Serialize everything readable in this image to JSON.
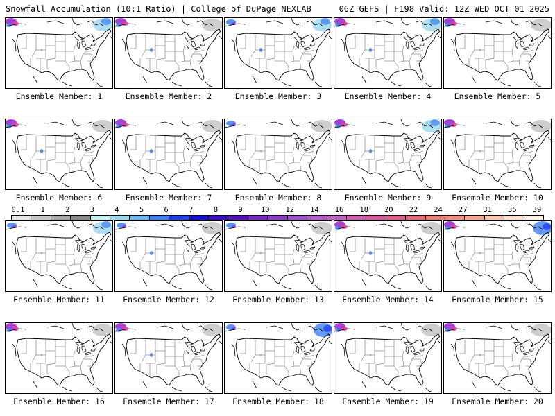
{
  "header": {
    "title_left": "Snowfall Accumulation (10:1 Ratio) | College of DuPage NEXLAB",
    "title_right": "06Z GEFS | F198 Valid: 12Z WED OCT 01 2025"
  },
  "panels": [
    {
      "label": "Ensemble Member: 1",
      "snow": {
        "pnw": "heavy",
        "ne": "light-blue",
        "rockies": "trace"
      }
    },
    {
      "label": "Ensemble Member: 2",
      "snow": {
        "pnw": "heavy",
        "ne": "light-gray",
        "rockies": "light"
      }
    },
    {
      "label": "Ensemble Member: 3",
      "snow": {
        "pnw": "moderate",
        "ne": "light-blue",
        "rockies": "light"
      }
    },
    {
      "label": "Ensemble Member: 4",
      "snow": {
        "pnw": "heavy",
        "ne": "light-blue",
        "rockies": "light"
      }
    },
    {
      "label": "Ensemble Member: 5",
      "snow": {
        "pnw": "heavy",
        "ne": "light-gray",
        "rockies": "trace"
      }
    },
    {
      "label": "Ensemble Member: 6",
      "snow": {
        "pnw": "heavy",
        "ne": "light-gray",
        "rockies": "light"
      }
    },
    {
      "label": "Ensemble Member: 7",
      "snow": {
        "pnw": "heavy",
        "ne": "light-gray",
        "rockies": "light"
      }
    },
    {
      "label": "Ensemble Member: 8",
      "snow": {
        "pnw": "moderate",
        "ne": "light-gray",
        "rockies": "trace"
      }
    },
    {
      "label": "Ensemble Member: 9",
      "snow": {
        "pnw": "heavy",
        "ne": "light-blue",
        "rockies": "light"
      }
    },
    {
      "label": "Ensemble Member: 10",
      "snow": {
        "pnw": "heavy",
        "ne": "light-gray",
        "rockies": "trace"
      }
    },
    {
      "label": "Ensemble Member: 11",
      "snow": {
        "pnw": "moderate",
        "ne": "light-blue",
        "rockies": "trace"
      }
    },
    {
      "label": "Ensemble Member: 12",
      "snow": {
        "pnw": "moderate",
        "ne": "light-gray",
        "rockies": "light"
      }
    },
    {
      "label": "Ensemble Member: 13",
      "snow": {
        "pnw": "moderate",
        "ne": "light-gray",
        "rockies": "trace"
      }
    },
    {
      "label": "Ensemble Member: 14",
      "snow": {
        "pnw": "heavy",
        "ne": "light-gray",
        "rockies": "light"
      }
    },
    {
      "label": "Ensemble Member: 15",
      "snow": {
        "pnw": "heavy",
        "ne": "moderate-blue",
        "rockies": "trace"
      }
    },
    {
      "label": "Ensemble Member: 16",
      "snow": {
        "pnw": "heavy",
        "ne": "light-gray",
        "rockies": "trace"
      }
    },
    {
      "label": "Ensemble Member: 17",
      "snow": {
        "pnw": "heavy",
        "ne": "light-gray",
        "rockies": "light"
      }
    },
    {
      "label": "Ensemble Member: 18",
      "snow": {
        "pnw": "moderate",
        "ne": "moderate-blue",
        "rockies": "trace"
      }
    },
    {
      "label": "Ensemble Member: 19",
      "snow": {
        "pnw": "heavy",
        "ne": "light-gray",
        "rockies": "trace"
      }
    },
    {
      "label": "Ensemble Member: 20",
      "snow": {
        "pnw": "heavy",
        "ne": "light-gray",
        "rockies": "trace"
      }
    }
  ],
  "colorbar": {
    "labels": [
      "0.1",
      "1",
      "2",
      "3",
      "4",
      "5",
      "6",
      "7",
      "8",
      "9",
      "10",
      "12",
      "14",
      "16",
      "18",
      "20",
      "22",
      "24",
      "27",
      "31",
      "35",
      "39"
    ],
    "colors": [
      "#e6e6e6",
      "#c8c8c8",
      "#a6a6a6",
      "#868686",
      "#c2f0f0",
      "#9ad8ee",
      "#6cb4ec",
      "#3c7ff0",
      "#1f3ff0",
      "#1010d8",
      "#3a0ac8",
      "#5a10c0",
      "#7a2ac2",
      "#8c3ec8",
      "#a050cc",
      "#b45ac8",
      "#c060c0",
      "#cc5aae",
      "#d65898",
      "#de5c86",
      "#e46878",
      "#ea7a74",
      "#f08e80",
      "#f4a894",
      "#f8c4b0",
      "#fbe0d0",
      "#fdf0e6"
    ]
  },
  "colors": {
    "background": "#ffffff",
    "map_lines": "#000000",
    "state_lines": "#555555",
    "snow_heavy": "#9b2fd0",
    "snow_pink": "#e23aa0",
    "snow_blue": "#3c7ff0",
    "snow_lightblue": "#9ad8ee",
    "snow_gray": "#b9b9b9"
  }
}
